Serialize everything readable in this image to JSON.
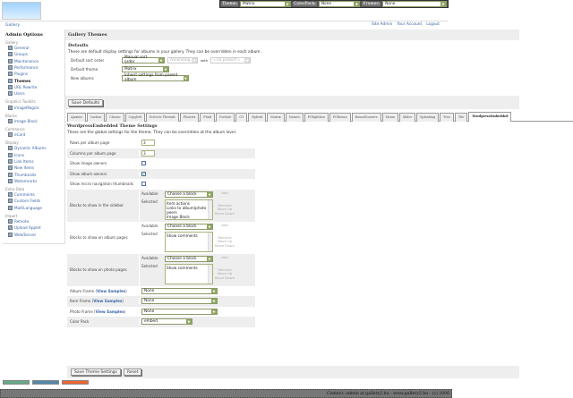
{
  "topbar": {
    "theme_label": "Theme:",
    "theme_value": "Matrix",
    "colorpack_label": "ColorPack:",
    "colorpack_value": "None",
    "frames_label": "Frames:",
    "frames_value": "None"
  },
  "logo": {
    "text": "Gallery"
  },
  "breadcrumb": "Gallery",
  "toplinks": [
    "Site Admin",
    "Your Account",
    "Logout"
  ],
  "sidebar": {
    "title": "Admin Options",
    "groups": [
      {
        "name": "Gallery",
        "items": [
          "General",
          "Groups",
          "Maintenance",
          "Performance",
          "Plugins",
          "Themes",
          "URL Rewrite",
          "Users"
        ],
        "active": "Themes"
      },
      {
        "name": "Graphics Toolkits",
        "items": [
          "ImageMagick"
        ]
      },
      {
        "name": "Blocks",
        "items": [
          "Image Block"
        ]
      },
      {
        "name": "Commerce",
        "items": [
          "eCard"
        ]
      },
      {
        "name": "Display",
        "items": [
          "Dynamic Albums",
          "Icons",
          "Link Items",
          "New Items",
          "Thumbnails",
          "Watermarks"
        ]
      },
      {
        "name": "Extra Data",
        "items": [
          "Comments",
          "Custom Fields",
          "MultiLanguage"
        ]
      },
      {
        "name": "Import",
        "items": [
          "Remote",
          "Upload Applet",
          "Web/Server"
        ]
      }
    ]
  },
  "main": {
    "title": "Gallery Themes",
    "defaults": {
      "heading": "Defaults",
      "description": "These are default display settings for albums in your gallery. They can be overridden in each album.",
      "sort_label": "Default sort order",
      "sort_value": "Manual sort order",
      "direction_value": "Ascending",
      "with_label": "with",
      "with_value": "« no presort »",
      "theme_label": "Default theme",
      "theme_value": "Matrix",
      "new_albums_label": "New albums",
      "new_albums_value": "Inherit settings from parent album",
      "save_button": "Save Defaults"
    },
    "tabs": [
      "Ajaxian",
      "Carbon",
      "Classic",
      "Copyleft",
      "Eclectic Threads",
      "Floatrix",
      "Fluid",
      "ForSale",
      "G1",
      "Hybrid",
      "Matrix",
      "Nature",
      "PGlightbox",
      "PGtheme",
      "RoundCorners",
      "Siriux",
      "Slider",
      "Splashing",
      "Tree",
      "Tile",
      "WordpressEmbedded"
    ],
    "active_tab": "WordpressEmbedded",
    "settings": {
      "heading": "WordpressEmbedded Theme Settings",
      "description": "These are the global settings for the theme. They can be overridden at the album level.",
      "rows_label": "Rows per album page",
      "rows_value": "3",
      "cols_label": "Columns per album page",
      "cols_value": "3",
      "image_owners_label": "Show image owners",
      "image_owners_checked": false,
      "album_owners_label": "Show album owners",
      "album_owners_checked": true,
      "micro_nav_label": "Show micro navigation thumbnails",
      "micro_nav_checked": false,
      "available_label": "Available",
      "selected_label": "Selected",
      "choose_block": "Choose a block",
      "add": "Add",
      "remove": "Remove",
      "move_up": "Move Up",
      "move_down": "Move Down",
      "sidebar_blocks_label": "Blocks to show in the sidebar",
      "sidebar_blocks": [
        "Item actions",
        "Links to album/photo peers",
        "Image Block"
      ],
      "album_blocks_label": "Blocks to show on album pages",
      "album_blocks": [
        "Show comments"
      ],
      "photo_blocks_label": "Blocks to show on photo pages",
      "photo_blocks": [
        "Show comments"
      ],
      "view_samples": "View Samples",
      "album_frame_label": "Album Frame",
      "album_frame_value": "None",
      "item_frame_label": "Item Frame",
      "item_frame_value": "None",
      "photo_frame_label": "Photo Frame",
      "photo_frame_value": "None",
      "color_pack_label": "Color Pack",
      "color_pack_value": "embed"
    },
    "save_button": "Save Theme Settings",
    "reset_button": "Reset"
  },
  "footer": "Contact: admin at gallery2.hu - www.gallery2.hu - (c) 2006",
  "colors": {
    "link": "#3a64a8",
    "panel": "#eeeeee",
    "footer": "#777777",
    "select_arrow": "#8fa760"
  }
}
